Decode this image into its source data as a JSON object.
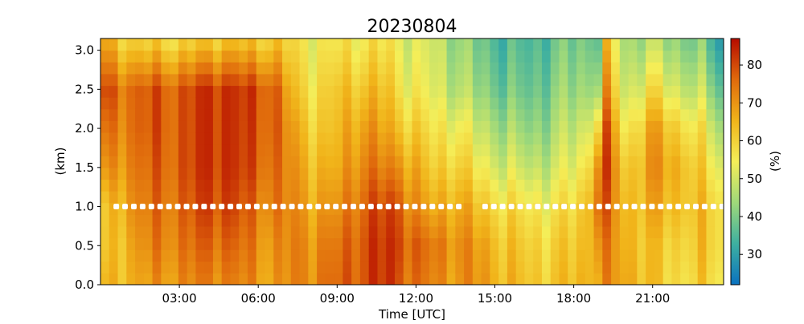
{
  "chart_data": {
    "type": "heatmap",
    "title": "20230804",
    "xlabel": "Time [UTC]",
    "ylabel": "(km)",
    "colorbar_label": "(%)",
    "x_range_hours": [
      0,
      23.7
    ],
    "x_ticks": [
      {
        "hour": 3,
        "label": "03:00"
      },
      {
        "hour": 6,
        "label": "06:00"
      },
      {
        "hour": 9,
        "label": "09:00"
      },
      {
        "hour": 12,
        "label": "12:00"
      },
      {
        "hour": 15,
        "label": "15:00"
      },
      {
        "hour": 18,
        "label": "18:00"
      },
      {
        "hour": 21,
        "label": "21:00"
      }
    ],
    "y_range_km": [
      0.0,
      3.15
    ],
    "y_ticks": [
      {
        "value": 0.0,
        "label": "0.0"
      },
      {
        "value": 0.5,
        "label": "0.5"
      },
      {
        "value": 1.0,
        "label": "1.0"
      },
      {
        "value": 1.5,
        "label": "1.5"
      },
      {
        "value": 2.0,
        "label": "2.0"
      },
      {
        "value": 2.5,
        "label": "2.5"
      },
      {
        "value": 3.0,
        "label": "3.0"
      }
    ],
    "colorbar_range": [
      22,
      87
    ],
    "colorbar_ticks": [
      {
        "value": 30,
        "label": "30"
      },
      {
        "value": 40,
        "label": "40"
      },
      {
        "value": 50,
        "label": "50"
      },
      {
        "value": 60,
        "label": "60"
      },
      {
        "value": 70,
        "label": "70"
      },
      {
        "value": 80,
        "label": "80"
      }
    ],
    "colormap": [
      "#0a72c0",
      "#3eb0a0",
      "#9fd97a",
      "#f5ee58",
      "#f1b41a",
      "#e06a0c",
      "#b60c00"
    ],
    "height_levels_km": [
      0.0,
      0.15,
      0.3,
      0.45,
      0.6,
      0.75,
      0.9,
      1.05,
      1.2,
      1.35,
      1.5,
      1.65,
      1.8,
      1.95,
      2.1,
      2.25,
      2.4,
      2.55,
      2.7,
      2.85,
      3.0,
      3.15
    ],
    "time_nodes_hours": [
      0.0,
      1.0,
      2.0,
      3.0,
      4.0,
      4.6,
      5.0,
      6.0,
      6.6,
      7.5,
      8.6,
      9.0,
      10.0,
      11.0,
      11.3,
      12.0,
      12.6,
      13.5,
      14.5,
      15.5,
      16.5,
      17.5,
      18.5,
      18.9,
      19.1,
      19.2,
      20.0,
      21.0,
      22.0,
      23.0,
      23.7
    ],
    "rh_grid_percent": [
      [
        62,
        58,
        57,
        66,
        72,
        78,
        65
      ],
      [
        66,
        67,
        70,
        73,
        75,
        76,
        60
      ],
      [
        68,
        72,
        74,
        76,
        78,
        78,
        58
      ],
      [
        71,
        74,
        76,
        78,
        78,
        78,
        58
      ],
      [
        72,
        76,
        80,
        82,
        82,
        82,
        60
      ],
      [
        74,
        78,
        82,
        84,
        84,
        84,
        62
      ],
      [
        72,
        76,
        80,
        82,
        82,
        82,
        62
      ],
      [
        70,
        72,
        74,
        78,
        79,
        80,
        60
      ],
      [
        68,
        70,
        74,
        76,
        78,
        78,
        62
      ],
      [
        72,
        72,
        70,
        68,
        65,
        60,
        56
      ],
      [
        74,
        72,
        68,
        64,
        60,
        58,
        54
      ],
      [
        76,
        74,
        70,
        66,
        64,
        62,
        56
      ],
      [
        80,
        80,
        78,
        74,
        70,
        64,
        56
      ],
      [
        82,
        82,
        80,
        72,
        66,
        62,
        56
      ],
      [
        80,
        82,
        80,
        72,
        64,
        58,
        54
      ],
      [
        74,
        76,
        70,
        66,
        60,
        54,
        50
      ],
      [
        72,
        74,
        66,
        60,
        56,
        52,
        50
      ],
      [
        70,
        72,
        68,
        62,
        56,
        48,
        44
      ],
      [
        70,
        68,
        62,
        54,
        48,
        42,
        38
      ],
      [
        64,
        62,
        58,
        50,
        44,
        38,
        34
      ],
      [
        62,
        60,
        56,
        48,
        42,
        38,
        35
      ],
      [
        62,
        60,
        56,
        50,
        46,
        42,
        38
      ],
      [
        66,
        64,
        62,
        56,
        50,
        44,
        40
      ],
      [
        68,
        72,
        78,
        74,
        62,
        48,
        40
      ],
      [
        68,
        70,
        72,
        68,
        56,
        40,
        32
      ],
      [
        70,
        72,
        76,
        80,
        78,
        70,
        62
      ],
      [
        68,
        66,
        64,
        60,
        54,
        48,
        44
      ],
      [
        62,
        62,
        66,
        70,
        68,
        58,
        46
      ],
      [
        58,
        60,
        64,
        66,
        60,
        50,
        42
      ],
      [
        60,
        62,
        62,
        58,
        54,
        46,
        38
      ],
      [
        56,
        58,
        58,
        52,
        44,
        36,
        28
      ]
    ],
    "rh_grid_heights_km": [
      0.0,
      0.5,
      1.0,
      1.5,
      2.0,
      2.5,
      3.15
    ],
    "marker_line": {
      "height_km": 1.0,
      "color": "#ffffff",
      "gaps_hours": [
        [
          13.9,
          14.5
        ]
      ],
      "spacing_hours": 0.334
    }
  }
}
